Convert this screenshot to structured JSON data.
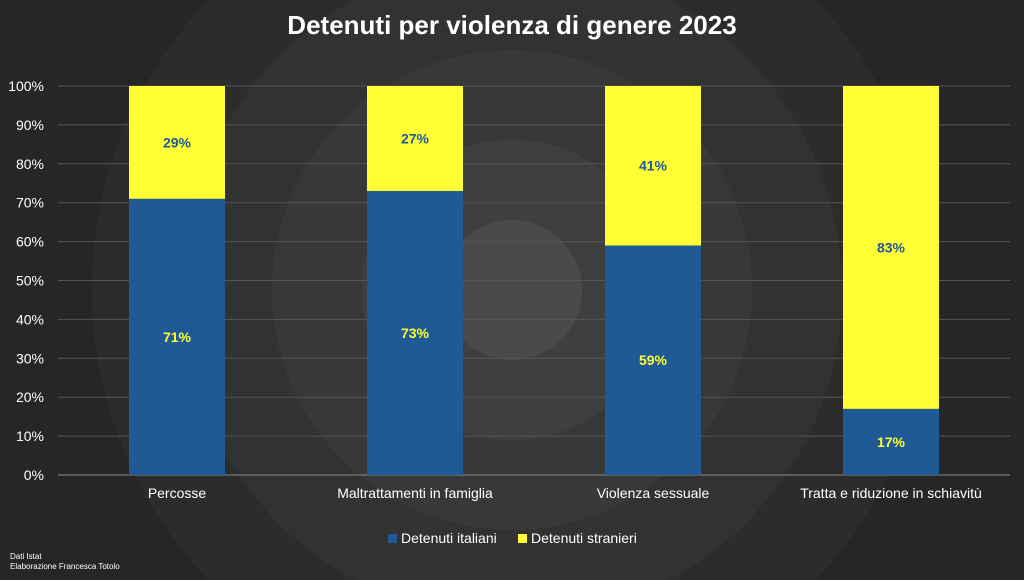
{
  "chart_data": {
    "type": "bar",
    "stacked": true,
    "percent_stacked": true,
    "title": "Detenuti per violenza di genere 2023",
    "categories": [
      "Percosse",
      "Maltrattamenti in famiglia",
      "Violenza sessuale",
      "Tratta e riduzione in schiavitù"
    ],
    "series": [
      {
        "name": "Detenuti italiani",
        "color": "#1f5a96",
        "label_color": "#ffff33",
        "values": [
          71,
          73,
          59,
          17
        ],
        "labels": [
          "71%",
          "73%",
          "59%",
          "17%"
        ]
      },
      {
        "name": "Detenuti stranieri",
        "color": "#ffff33",
        "label_color": "#1f5a96",
        "values": [
          29,
          27,
          41,
          83
        ],
        "labels": [
          "29%",
          "27%",
          "41%",
          "83%"
        ]
      }
    ],
    "ylim": [
      0,
      100
    ],
    "yticks": [
      "0%",
      "10%",
      "20%",
      "30%",
      "40%",
      "50%",
      "60%",
      "70%",
      "80%",
      "90%",
      "100%"
    ],
    "grid": true,
    "legend_position": "bottom"
  },
  "source": {
    "line1": "Dati Istat",
    "line2": "Elaborazione Francesca Totolo"
  }
}
